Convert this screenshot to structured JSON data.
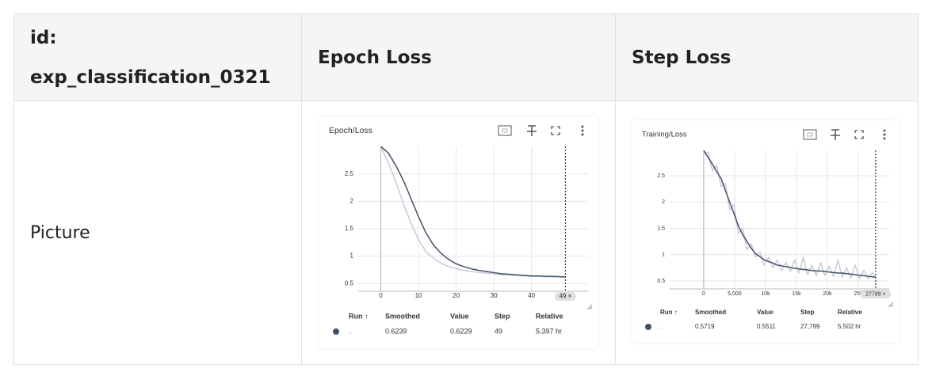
{
  "table": {
    "header": [
      "id: exp_classification_0321",
      "Epoch Loss",
      "Step Loss"
    ],
    "rows": [
      [
        "Picture"
      ]
    ]
  },
  "chart_data": [
    {
      "type": "line",
      "title": "Epoch/Loss",
      "x": [
        0,
        2,
        4,
        6,
        8,
        10,
        12,
        14,
        16,
        18,
        20,
        22,
        24,
        26,
        28,
        30,
        32,
        34,
        36,
        38,
        40,
        42,
        44,
        46,
        48,
        49
      ],
      "series": [
        {
          "color": "#c9ccd8",
          "values": [
            3.0,
            2.7,
            2.35,
            1.95,
            1.6,
            1.3,
            1.08,
            0.96,
            0.87,
            0.81,
            0.77,
            0.74,
            0.72,
            0.7,
            0.69,
            0.68,
            0.66,
            0.66,
            0.65,
            0.64,
            0.63,
            0.63,
            0.625,
            0.625,
            0.623,
            0.6229
          ]
        },
        {
          "color": "#425066",
          "values": [
            3.0,
            2.88,
            2.65,
            2.38,
            2.05,
            1.72,
            1.42,
            1.2,
            1.05,
            0.94,
            0.86,
            0.81,
            0.77,
            0.74,
            0.72,
            0.7,
            0.68,
            0.67,
            0.66,
            0.65,
            0.64,
            0.64,
            0.63,
            0.63,
            0.624,
            0.6239
          ]
        }
      ],
      "xlim": [
        -6,
        55
      ],
      "ylim": [
        0.36,
        3.0
      ],
      "xticks": [
        0,
        10,
        20,
        30,
        40
      ],
      "yticks": [
        0.5,
        1,
        1.5,
        2,
        2.5
      ],
      "grid": true,
      "cursor": {
        "x": 49,
        "label": "49 ×"
      },
      "tooltip": {
        "color": "#425066",
        "columns": [
          "Run ↑",
          "Smoothed",
          "Value",
          "Step",
          "Relative"
        ],
        "rows": [
          [
            ".",
            "0.6239",
            "0.6229",
            "49",
            "5.397 hr"
          ]
        ]
      }
    },
    {
      "type": "line",
      "title": "Training/Loss",
      "x": [
        0,
        700,
        1400,
        2100,
        2800,
        3500,
        4200,
        4900,
        5600,
        6300,
        7000,
        7700,
        8400,
        9100,
        9800,
        10500,
        11200,
        11900,
        12600,
        13300,
        14000,
        14700,
        15400,
        16100,
        16800,
        17500,
        18200,
        18900,
        19600,
        20300,
        21000,
        21700,
        22400,
        23100,
        23800,
        24500,
        25200,
        25900,
        26600,
        27300,
        27799
      ],
      "series": [
        {
          "color": "#c9ccd8",
          "values": [
            2.9,
            2.95,
            2.6,
            2.7,
            2.3,
            2.35,
            1.85,
            1.95,
            1.4,
            1.5,
            1.1,
            1.2,
            0.95,
            1.05,
            0.8,
            0.95,
            0.75,
            0.9,
            0.7,
            0.85,
            0.68,
            0.9,
            0.65,
            0.95,
            0.62,
            0.8,
            0.6,
            0.85,
            0.6,
            0.78,
            0.58,
            0.9,
            0.57,
            0.75,
            0.56,
            0.8,
            0.55,
            0.7,
            0.54,
            0.66,
            0.5511
          ]
        },
        {
          "color": "#425066",
          "values": [
            2.98,
            2.85,
            2.72,
            2.58,
            2.45,
            2.22,
            2.0,
            1.78,
            1.55,
            1.38,
            1.25,
            1.12,
            1.02,
            0.96,
            0.9,
            0.87,
            0.84,
            0.8,
            0.79,
            0.77,
            0.76,
            0.74,
            0.73,
            0.72,
            0.71,
            0.7,
            0.69,
            0.69,
            0.68,
            0.67,
            0.66,
            0.65,
            0.65,
            0.64,
            0.63,
            0.62,
            0.61,
            0.6,
            0.59,
            0.58,
            0.5719
          ]
        }
      ],
      "xlim": [
        -5500,
        30000
      ],
      "ylim": [
        0.35,
        2.98
      ],
      "xticks": [
        0,
        {
          "value": 5000,
          "label": "5,000"
        },
        {
          "value": 10000,
          "label": "10k"
        },
        {
          "value": 15000,
          "label": "15k"
        },
        {
          "value": 20000,
          "label": "20k"
        },
        {
          "value": 25000,
          "label": "25k"
        }
      ],
      "yticks": [
        0.5,
        1,
        1.5,
        2,
        2.5
      ],
      "grid": true,
      "cursor": {
        "x": 27799,
        "label": "27799 ×"
      },
      "tooltip": {
        "color": "#425066",
        "columns": [
          "Run ↑",
          "Smoothed",
          "Value",
          "Step",
          "Relative"
        ],
        "rows": [
          [
            ".",
            "0.5719",
            "0.5511",
            "27,799",
            "5.502 hr"
          ]
        ]
      }
    }
  ]
}
